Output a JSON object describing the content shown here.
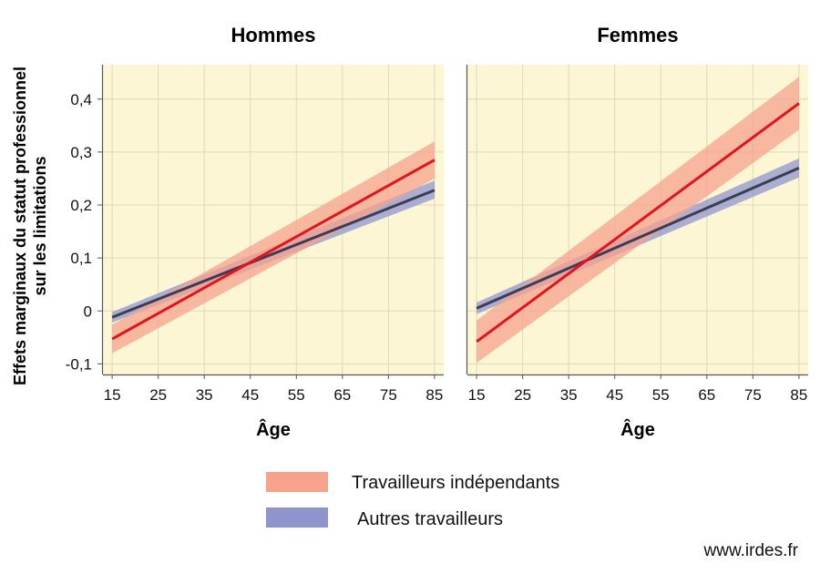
{
  "ylabel_lines": [
    "Effets marginaux du statut professionnel",
    "sur les limitations"
  ],
  "source": "www.irdes.fr",
  "colors": {
    "background": "#fdf6d5",
    "grid": "#ddd9b8",
    "independant_line": "#e2141c",
    "independant_band": "#f6a28c",
    "autres_line": "#3c3c54",
    "autres_band": "#8f95cc",
    "axis": "#555555"
  },
  "legend": [
    {
      "key": "independant",
      "label": "Travailleurs indépendants"
    },
    {
      "key": "autres",
      "label": "Autres travailleurs"
    }
  ],
  "chart_data": [
    {
      "type": "line",
      "title": "Hommes",
      "xlabel": "Âge",
      "ylabel": "Effets marginaux du statut professionnel sur les limitations",
      "xlim": [
        13,
        87
      ],
      "ylim": [
        -0.12,
        0.465
      ],
      "xticks": [
        15,
        25,
        35,
        45,
        55,
        65,
        75,
        85
      ],
      "yticks": [
        -0.1,
        0,
        0.1,
        0.2,
        0.3,
        0.4
      ],
      "ytick_labels": [
        "-0,1",
        "0",
        "0,1",
        "0,2",
        "0,3",
        "0,4"
      ],
      "grid": true,
      "series": [
        {
          "name": "Travailleurs indépendants",
          "key": "independant",
          "x": [
            15,
            85
          ],
          "y": [
            -0.053,
            0.285
          ],
          "lower": [
            -0.08,
            0.25
          ],
          "upper": [
            -0.026,
            0.32
          ]
        },
        {
          "name": "Autres travailleurs",
          "key": "autres",
          "x": [
            15,
            85
          ],
          "y": [
            -0.012,
            0.228
          ],
          "lower": [
            -0.022,
            0.212
          ],
          "upper": [
            -0.002,
            0.246
          ]
        }
      ]
    },
    {
      "type": "line",
      "title": "Femmes",
      "xlabel": "Âge",
      "xlim": [
        13,
        87
      ],
      "ylim": [
        -0.12,
        0.465
      ],
      "xticks": [
        15,
        25,
        35,
        45,
        55,
        65,
        75,
        85
      ],
      "yticks": [
        -0.1,
        0,
        0.1,
        0.2,
        0.3,
        0.4
      ],
      "grid": true,
      "series": [
        {
          "name": "Travailleurs indépendants",
          "key": "independant",
          "x": [
            15,
            85
          ],
          "y": [
            -0.058,
            0.392
          ],
          "lower": [
            -0.098,
            0.342
          ],
          "upper": [
            -0.018,
            0.442
          ]
        },
        {
          "name": "Autres travailleurs",
          "key": "autres",
          "x": [
            15,
            85
          ],
          "y": [
            0.005,
            0.27
          ],
          "lower": [
            -0.006,
            0.252
          ],
          "upper": [
            0.016,
            0.288
          ]
        }
      ]
    }
  ]
}
